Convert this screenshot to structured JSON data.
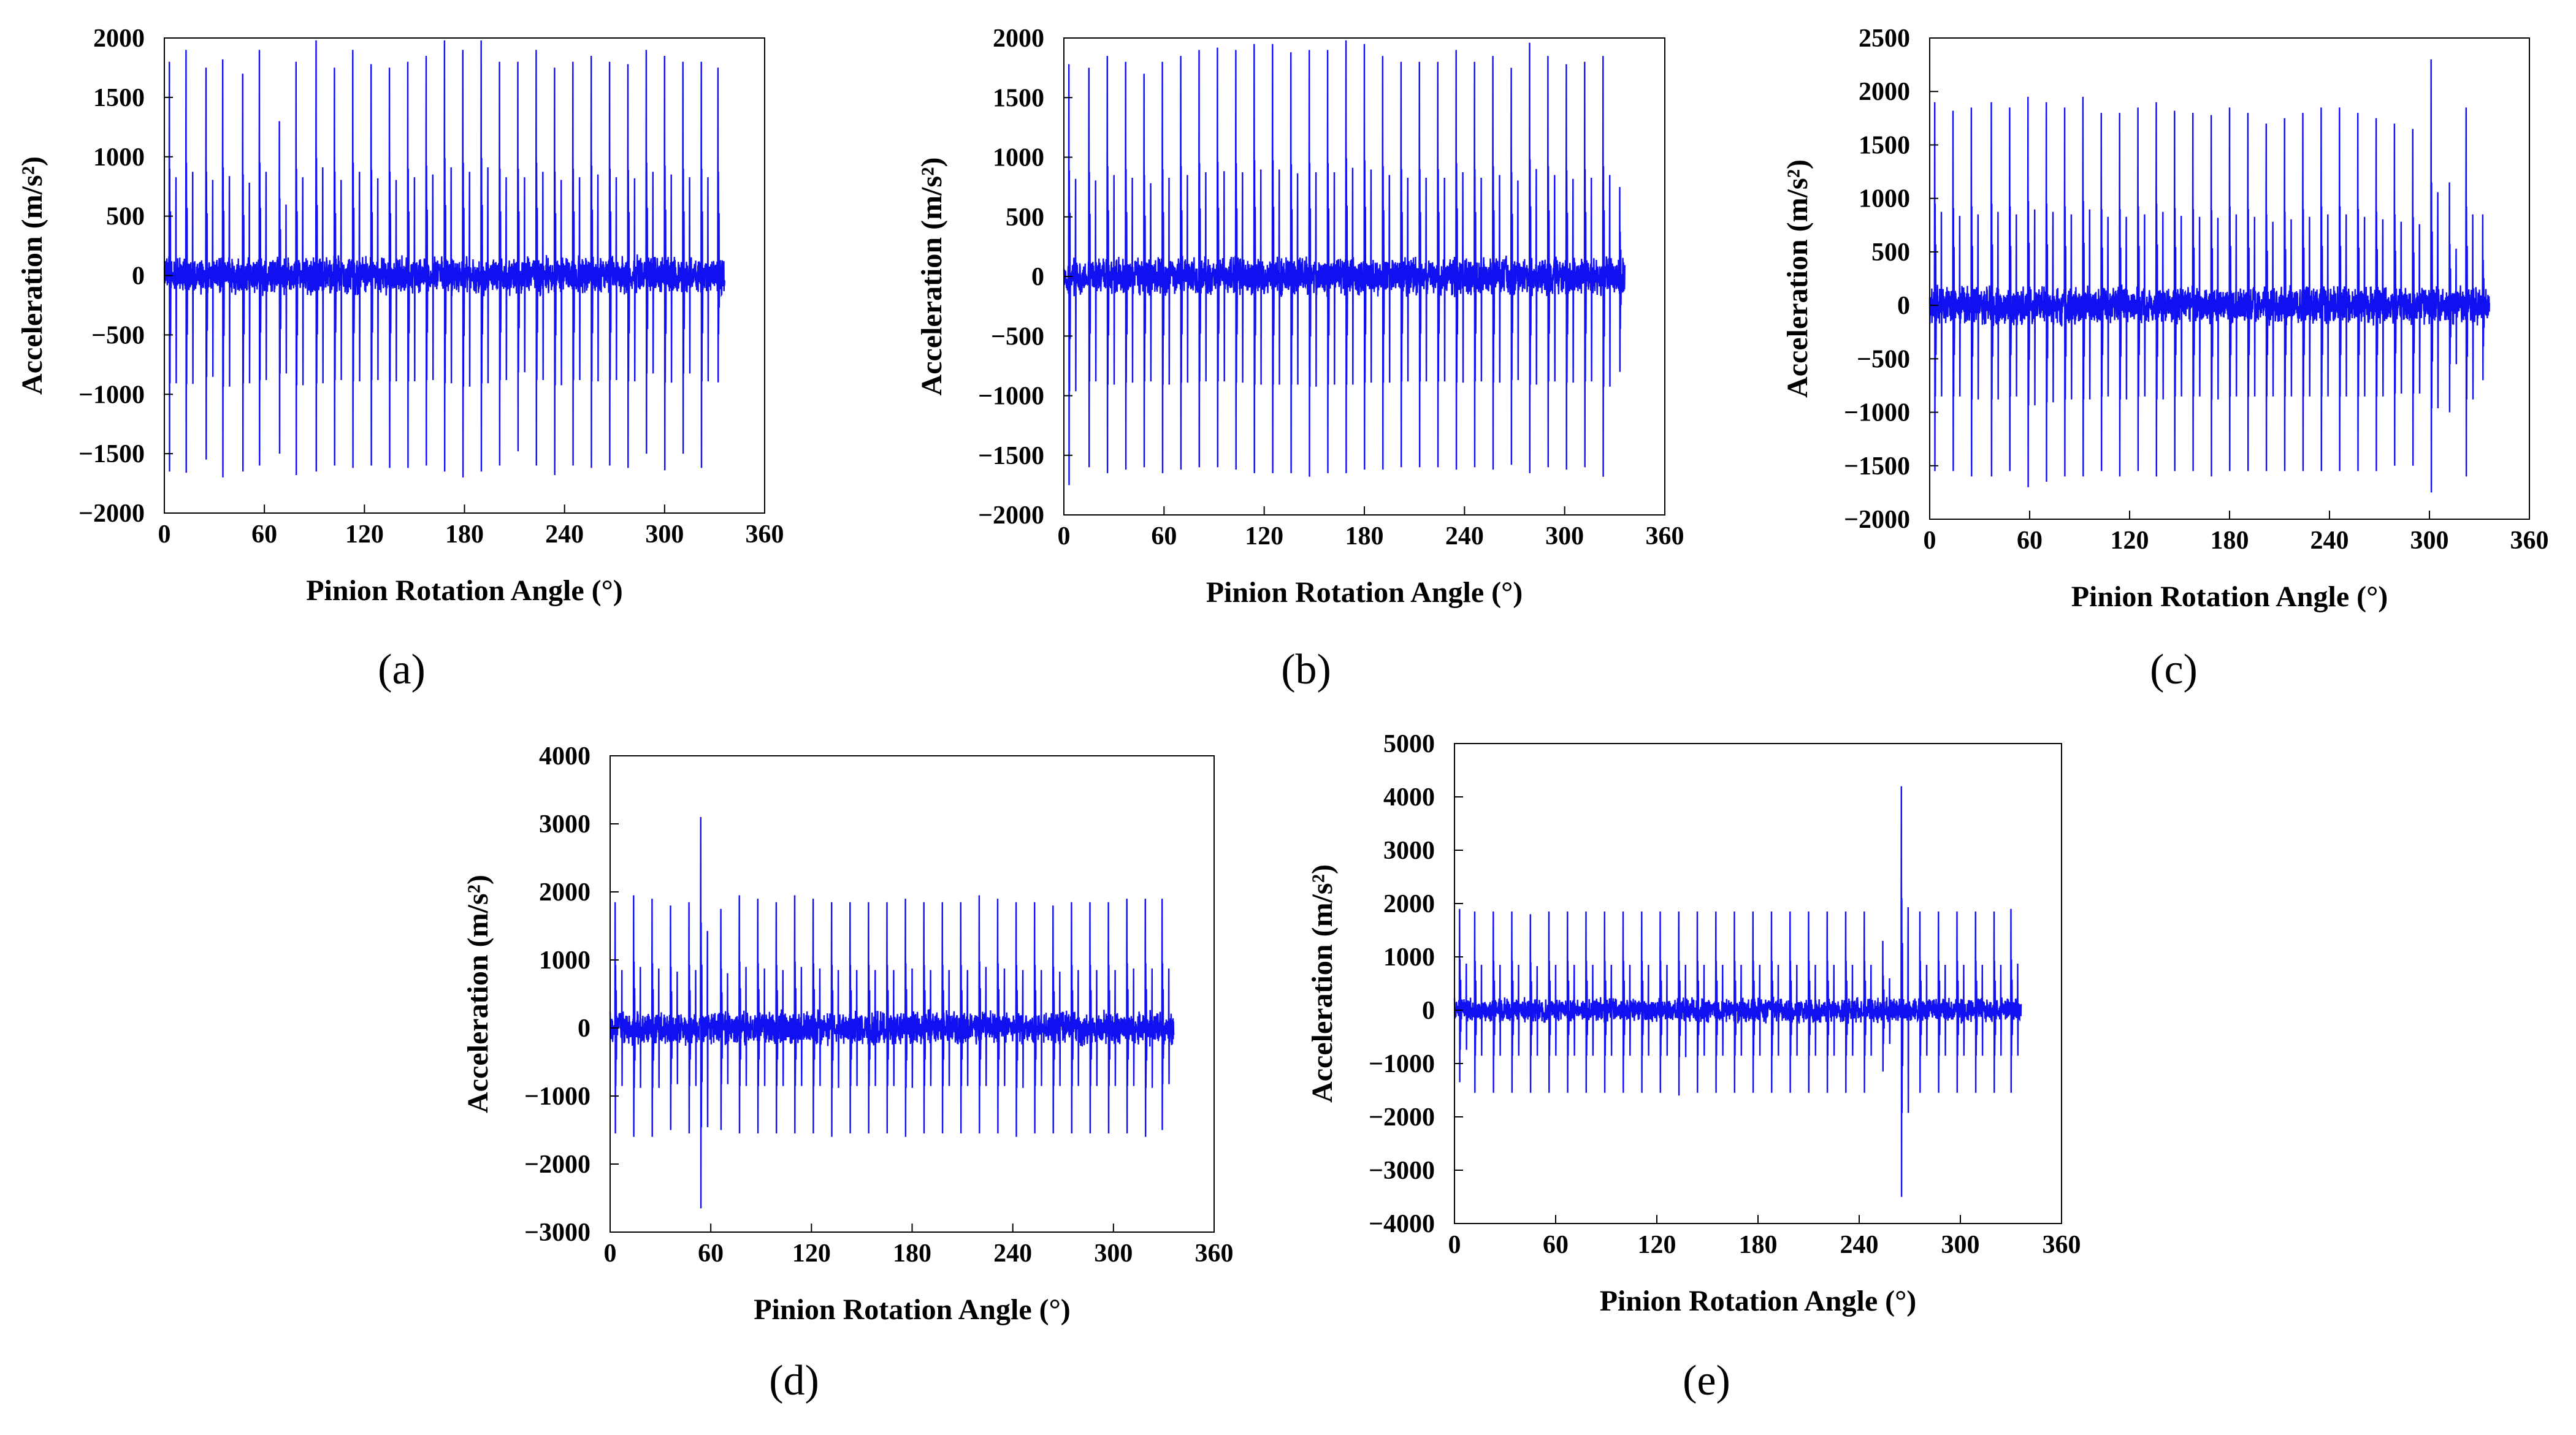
{
  "figure": {
    "title": ""
  },
  "colors": {
    "trace": "#1010f0",
    "axis": "#000000"
  },
  "chart_data": [
    {
      "id": "a",
      "panel_label": "(a)",
      "type": "line",
      "xlabel": "Pinion Rotation Angle (°)",
      "ylabel": "Acceleration (m/s²)",
      "xlim": [
        0,
        360
      ],
      "ylim": [
        -2000,
        2000
      ],
      "xticks": [
        0,
        60,
        120,
        180,
        240,
        300,
        360
      ],
      "xtick_labels": [
        "0",
        "60",
        "120",
        "180",
        "240",
        "300",
        "360"
      ],
      "yticks": [
        -2000,
        -1500,
        -1000,
        -500,
        0,
        500,
        1000,
        1500,
        2000
      ],
      "ytick_labels": [
        "−2000",
        "−1500",
        "−1000",
        "−500",
        "0",
        "500",
        "1000",
        "1500",
        "2000"
      ],
      "x_end": 336,
      "noise": 180,
      "spikes": [
        {
          "x": 3,
          "up": 1800,
          "down": -1650
        },
        {
          "x": 13,
          "up": 1900,
          "down": -1660
        },
        {
          "x": 25,
          "up": 1750,
          "down": -1550
        },
        {
          "x": 35,
          "up": 1820,
          "down": -1700
        },
        {
          "x": 47,
          "up": 1700,
          "down": -1650
        },
        {
          "x": 57,
          "up": 1900,
          "down": -1600
        },
        {
          "x": 69,
          "up": 1300,
          "down": -1500
        },
        {
          "x": 79,
          "up": 1800,
          "down": -1680
        },
        {
          "x": 91,
          "up": 1980,
          "down": -1650
        },
        {
          "x": 102,
          "up": 1750,
          "down": -1600
        },
        {
          "x": 113,
          "up": 1900,
          "down": -1620
        },
        {
          "x": 124,
          "up": 1780,
          "down": -1600
        },
        {
          "x": 135,
          "up": 1750,
          "down": -1620
        },
        {
          "x": 146,
          "up": 1800,
          "down": -1620
        },
        {
          "x": 157,
          "up": 1850,
          "down": -1600
        },
        {
          "x": 168,
          "up": 1980,
          "down": -1650
        },
        {
          "x": 179,
          "up": 1900,
          "down": -1700
        },
        {
          "x": 190,
          "up": 1980,
          "down": -1650
        },
        {
          "x": 201,
          "up": 1800,
          "down": -1600
        },
        {
          "x": 212,
          "up": 1800,
          "down": -1480
        },
        {
          "x": 223,
          "up": 1900,
          "down": -1600
        },
        {
          "x": 234,
          "up": 1750,
          "down": -1680
        },
        {
          "x": 245,
          "up": 1800,
          "down": -1600
        },
        {
          "x": 256,
          "up": 1850,
          "down": -1620
        },
        {
          "x": 267,
          "up": 1800,
          "down": -1600
        },
        {
          "x": 278,
          "up": 1780,
          "down": -1620
        },
        {
          "x": 289,
          "up": 1900,
          "down": -1500
        },
        {
          "x": 300,
          "up": 1850,
          "down": -1640
        },
        {
          "x": 311,
          "up": 1800,
          "down": -1500
        },
        {
          "x": 322,
          "up": 1800,
          "down": -1620
        },
        {
          "x": 332,
          "up": 1750,
          "down": -900
        }
      ]
    },
    {
      "id": "b",
      "panel_label": "(b)",
      "type": "line",
      "xlabel": "Pinion Rotation Angle (°)",
      "ylabel": "Acceleration (m/s²)",
      "xlim": [
        0,
        360
      ],
      "ylim": [
        -2000,
        2000
      ],
      "xticks": [
        0,
        60,
        120,
        180,
        240,
        300,
        360
      ],
      "xtick_labels": [
        "0",
        "60",
        "120",
        "180",
        "240",
        "300",
        "360"
      ],
      "yticks": [
        -2000,
        -1500,
        -1000,
        -500,
        0,
        500,
        1000,
        1500,
        2000
      ],
      "ytick_labels": [
        "−2000",
        "−1500",
        "−1000",
        "−500",
        "0",
        "500",
        "1000",
        "1500",
        "2000"
      ],
      "x_end": 336,
      "noise": 180,
      "spikes": [
        {
          "x": 3,
          "up": 1780,
          "down": -1750
        },
        {
          "x": 15,
          "up": 1750,
          "down": -1600
        },
        {
          "x": 26,
          "up": 1850,
          "down": -1650
        },
        {
          "x": 37,
          "up": 1800,
          "down": -1620
        },
        {
          "x": 48,
          "up": 1700,
          "down": -1600
        },
        {
          "x": 59,
          "up": 1800,
          "down": -1650
        },
        {
          "x": 70,
          "up": 1850,
          "down": -1620
        },
        {
          "x": 81,
          "up": 1900,
          "down": -1600
        },
        {
          "x": 92,
          "up": 1920,
          "down": -1600
        },
        {
          "x": 103,
          "up": 1900,
          "down": -1620
        },
        {
          "x": 114,
          "up": 1950,
          "down": -1650
        },
        {
          "x": 125,
          "up": 1950,
          "down": -1650
        },
        {
          "x": 136,
          "up": 1880,
          "down": -1650
        },
        {
          "x": 147,
          "up": 1900,
          "down": -1680
        },
        {
          "x": 158,
          "up": 1900,
          "down": -1650
        },
        {
          "x": 169,
          "up": 1980,
          "down": -1650
        },
        {
          "x": 180,
          "up": 1950,
          "down": -1620
        },
        {
          "x": 191,
          "up": 1850,
          "down": -1620
        },
        {
          "x": 202,
          "up": 1800,
          "down": -1600
        },
        {
          "x": 213,
          "up": 1800,
          "down": -1600
        },
        {
          "x": 224,
          "up": 1800,
          "down": -1600
        },
        {
          "x": 235,
          "up": 1900,
          "down": -1620
        },
        {
          "x": 246,
          "up": 1800,
          "down": -1600
        },
        {
          "x": 257,
          "up": 1850,
          "down": -1620
        },
        {
          "x": 268,
          "up": 1750,
          "down": -1580
        },
        {
          "x": 279,
          "up": 1960,
          "down": -1650
        },
        {
          "x": 290,
          "up": 1850,
          "down": -1600
        },
        {
          "x": 301,
          "up": 1780,
          "down": -1620
        },
        {
          "x": 312,
          "up": 1800,
          "down": -1600
        },
        {
          "x": 323,
          "up": 1850,
          "down": -1680
        },
        {
          "x": 333,
          "up": 750,
          "down": -800
        }
      ]
    },
    {
      "id": "c",
      "panel_label": "(c)",
      "type": "line",
      "xlabel": "Pinion Rotation Angle (°)",
      "ylabel": "Acceleration (m/s²)",
      "xlim": [
        0,
        360
      ],
      "ylim": [
        -2000,
        2500
      ],
      "xticks": [
        0,
        60,
        120,
        180,
        240,
        300,
        360
      ],
      "xtick_labels": [
        "0",
        "60",
        "120",
        "180",
        "240",
        "300",
        "360"
      ],
      "yticks": [
        -2000,
        -1500,
        -1000,
        -500,
        0,
        500,
        1000,
        1500,
        2000,
        2500
      ],
      "ytick_labels": [
        "−2000",
        "−1500",
        "−1000",
        "−500",
        "0",
        "500",
        "1000",
        "1500",
        "2000",
        "2500"
      ],
      "x_end": 336,
      "noise": 200,
      "spikes": [
        {
          "x": 3,
          "up": 1900,
          "down": -1550
        },
        {
          "x": 14,
          "up": 1820,
          "down": -1550
        },
        {
          "x": 25,
          "up": 1850,
          "down": -1600
        },
        {
          "x": 37,
          "up": 1900,
          "down": -1600
        },
        {
          "x": 48,
          "up": 1850,
          "down": -1550
        },
        {
          "x": 59,
          "up": 1950,
          "down": -1700
        },
        {
          "x": 70,
          "up": 1900,
          "down": -1650
        },
        {
          "x": 81,
          "up": 1850,
          "down": -1600
        },
        {
          "x": 92,
          "up": 1950,
          "down": -1600
        },
        {
          "x": 103,
          "up": 1800,
          "down": -1550
        },
        {
          "x": 114,
          "up": 1800,
          "down": -1600
        },
        {
          "x": 125,
          "up": 1850,
          "down": -1550
        },
        {
          "x": 136,
          "up": 1900,
          "down": -1600
        },
        {
          "x": 147,
          "up": 1820,
          "down": -1550
        },
        {
          "x": 158,
          "up": 1800,
          "down": -1550
        },
        {
          "x": 169,
          "up": 1780,
          "down": -1600
        },
        {
          "x": 180,
          "up": 1850,
          "down": -1550
        },
        {
          "x": 191,
          "up": 1800,
          "down": -1550
        },
        {
          "x": 202,
          "up": 1700,
          "down": -1550
        },
        {
          "x": 213,
          "up": 1750,
          "down": -1550
        },
        {
          "x": 224,
          "up": 1800,
          "down": -1550
        },
        {
          "x": 235,
          "up": 1850,
          "down": -1550
        },
        {
          "x": 246,
          "up": 1850,
          "down": -1550
        },
        {
          "x": 257,
          "up": 1800,
          "down": -1550
        },
        {
          "x": 268,
          "up": 1750,
          "down": -1550
        },
        {
          "x": 279,
          "up": 1700,
          "down": -1500
        },
        {
          "x": 290,
          "up": 1650,
          "down": -1500
        },
        {
          "x": 301,
          "up": 2300,
          "down": -1750
        },
        {
          "x": 312,
          "up": 1150,
          "down": -1000
        },
        {
          "x": 322,
          "up": 1850,
          "down": -1600
        },
        {
          "x": 332,
          "up": 850,
          "down": -700
        }
      ]
    },
    {
      "id": "d",
      "panel_label": "(d)",
      "type": "line",
      "xlabel": "Pinion Rotation Angle (°)",
      "ylabel": "Acceleration (m/s²)",
      "xlim": [
        0,
        360
      ],
      "ylim": [
        -3000,
        4000
      ],
      "xticks": [
        0,
        60,
        120,
        180,
        240,
        300,
        360
      ],
      "xtick_labels": [
        "0",
        "60",
        "120",
        "180",
        "240",
        "300",
        "360"
      ],
      "yticks": [
        -3000,
        -2000,
        -1000,
        0,
        1000,
        2000,
        3000,
        4000
      ],
      "ytick_labels": [
        "−3000",
        "−2000",
        "−1000",
        "0",
        "1000",
        "2000",
        "3000",
        "4000"
      ],
      "x_end": 336,
      "noise": 280,
      "spikes": [
        {
          "x": 3,
          "up": 1850,
          "down": -1550
        },
        {
          "x": 14,
          "up": 1950,
          "down": -1600
        },
        {
          "x": 25,
          "up": 1900,
          "down": -1600
        },
        {
          "x": 36,
          "up": 1800,
          "down": -1500
        },
        {
          "x": 47,
          "up": 1850,
          "down": -1550
        },
        {
          "x": 54,
          "up": 3100,
          "down": -2650
        },
        {
          "x": 66,
          "up": 1750,
          "down": -1500
        },
        {
          "x": 77,
          "up": 1950,
          "down": -1550
        },
        {
          "x": 88,
          "up": 1900,
          "down": -1550
        },
        {
          "x": 99,
          "up": 1850,
          "down": -1550
        },
        {
          "x": 110,
          "up": 1950,
          "down": -1550
        },
        {
          "x": 121,
          "up": 1900,
          "down": -1550
        },
        {
          "x": 132,
          "up": 1850,
          "down": -1600
        },
        {
          "x": 143,
          "up": 1850,
          "down": -1550
        },
        {
          "x": 154,
          "up": 1850,
          "down": -1550
        },
        {
          "x": 165,
          "up": 1850,
          "down": -1550
        },
        {
          "x": 176,
          "up": 1900,
          "down": -1600
        },
        {
          "x": 187,
          "up": 1850,
          "down": -1550
        },
        {
          "x": 198,
          "up": 1850,
          "down": -1550
        },
        {
          "x": 209,
          "up": 1850,
          "down": -1550
        },
        {
          "x": 220,
          "up": 1950,
          "down": -1550
        },
        {
          "x": 231,
          "up": 1900,
          "down": -1550
        },
        {
          "x": 242,
          "up": 1850,
          "down": -1600
        },
        {
          "x": 253,
          "up": 1850,
          "down": -1550
        },
        {
          "x": 264,
          "up": 1800,
          "down": -1550
        },
        {
          "x": 275,
          "up": 1850,
          "down": -1550
        },
        {
          "x": 286,
          "up": 1850,
          "down": -1550
        },
        {
          "x": 297,
          "up": 1850,
          "down": -1550
        },
        {
          "x": 308,
          "up": 1900,
          "down": -1550
        },
        {
          "x": 319,
          "up": 1900,
          "down": -1600
        },
        {
          "x": 329,
          "up": 1900,
          "down": -1500
        }
      ]
    },
    {
      "id": "e",
      "panel_label": "(e)",
      "type": "line",
      "xlabel": "Pinion Rotation Angle (°)",
      "ylabel": "Acceleration (m/s²)",
      "xlim": [
        0,
        360
      ],
      "ylim": [
        -4000,
        5000
      ],
      "xticks": [
        0,
        60,
        120,
        180,
        240,
        300,
        360
      ],
      "xtick_labels": [
        "0",
        "60",
        "120",
        "180",
        "240",
        "300",
        "360"
      ],
      "yticks": [
        -4000,
        -3000,
        -2000,
        -1000,
        0,
        1000,
        2000,
        3000,
        4000,
        5000
      ],
      "ytick_labels": [
        "−4000",
        "−3000",
        "−2000",
        "−1000",
        "0",
        "1000",
        "2000",
        "3000",
        "4000",
        "5000"
      ],
      "x_end": 336,
      "noise": 260,
      "spikes": [
        {
          "x": 3,
          "up": 1900,
          "down": -1350
        },
        {
          "x": 12,
          "up": 1850,
          "down": -1550
        },
        {
          "x": 23,
          "up": 1850,
          "down": -1550
        },
        {
          "x": 34,
          "up": 1850,
          "down": -1550
        },
        {
          "x": 45,
          "up": 1800,
          "down": -1550
        },
        {
          "x": 56,
          "up": 1850,
          "down": -1550
        },
        {
          "x": 67,
          "up": 1850,
          "down": -1550
        },
        {
          "x": 78,
          "up": 1850,
          "down": -1550
        },
        {
          "x": 89,
          "up": 1850,
          "down": -1550
        },
        {
          "x": 100,
          "up": 1850,
          "down": -1550
        },
        {
          "x": 111,
          "up": 1850,
          "down": -1550
        },
        {
          "x": 122,
          "up": 1850,
          "down": -1550
        },
        {
          "x": 133,
          "up": 1850,
          "down": -1600
        },
        {
          "x": 144,
          "up": 1850,
          "down": -1550
        },
        {
          "x": 155,
          "up": 1850,
          "down": -1550
        },
        {
          "x": 166,
          "up": 1850,
          "down": -1550
        },
        {
          "x": 177,
          "up": 1850,
          "down": -1550
        },
        {
          "x": 188,
          "up": 1850,
          "down": -1550
        },
        {
          "x": 199,
          "up": 1850,
          "down": -1550
        },
        {
          "x": 210,
          "up": 1850,
          "down": -1550
        },
        {
          "x": 221,
          "up": 1850,
          "down": -1550
        },
        {
          "x": 232,
          "up": 1850,
          "down": -1550
        },
        {
          "x": 243,
          "up": 1850,
          "down": -1550
        },
        {
          "x": 254,
          "up": 1300,
          "down": -1150
        },
        {
          "x": 265,
          "up": 4200,
          "down": -3500
        },
        {
          "x": 276,
          "up": 1850,
          "down": -1550
        },
        {
          "x": 287,
          "up": 1850,
          "down": -1550
        },
        {
          "x": 298,
          "up": 1850,
          "down": -1550
        },
        {
          "x": 309,
          "up": 1850,
          "down": -1550
        },
        {
          "x": 320,
          "up": 1850,
          "down": -1550
        },
        {
          "x": 330,
          "up": 1900,
          "down": -1550
        }
      ]
    }
  ]
}
